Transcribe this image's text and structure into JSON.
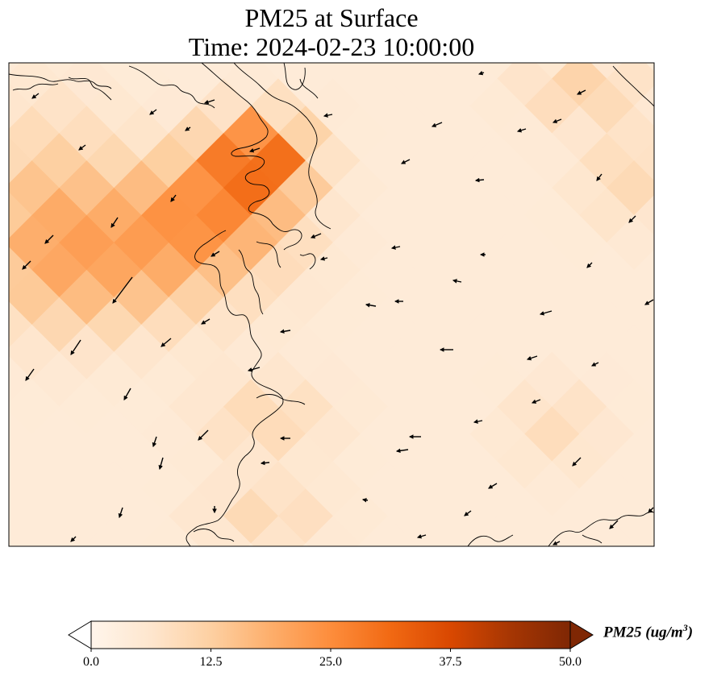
{
  "title": "PM25 at Surface",
  "subtitle": "Time: 2024-02-23 10:00:00",
  "colorbar": {
    "label_main": "PM25 (ug/m",
    "label_exp": "3",
    "label_close": ")",
    "ticks": [
      "0.0",
      "12.5",
      "25.0",
      "37.5",
      "50.0"
    ],
    "min": 0,
    "max": 50,
    "extend": "both",
    "colormap": [
      "#fff5eb",
      "#fee6ce",
      "#fdd0a2",
      "#fdae6b",
      "#fd8d3c",
      "#f16913",
      "#d94801",
      "#a63603",
      "#7f2704"
    ],
    "under_color": "#ffffff",
    "over_color": "#7f2704"
  },
  "map": {
    "field": "PM25",
    "vector_field": "wind",
    "coastline_color": "#000000"
  }
}
